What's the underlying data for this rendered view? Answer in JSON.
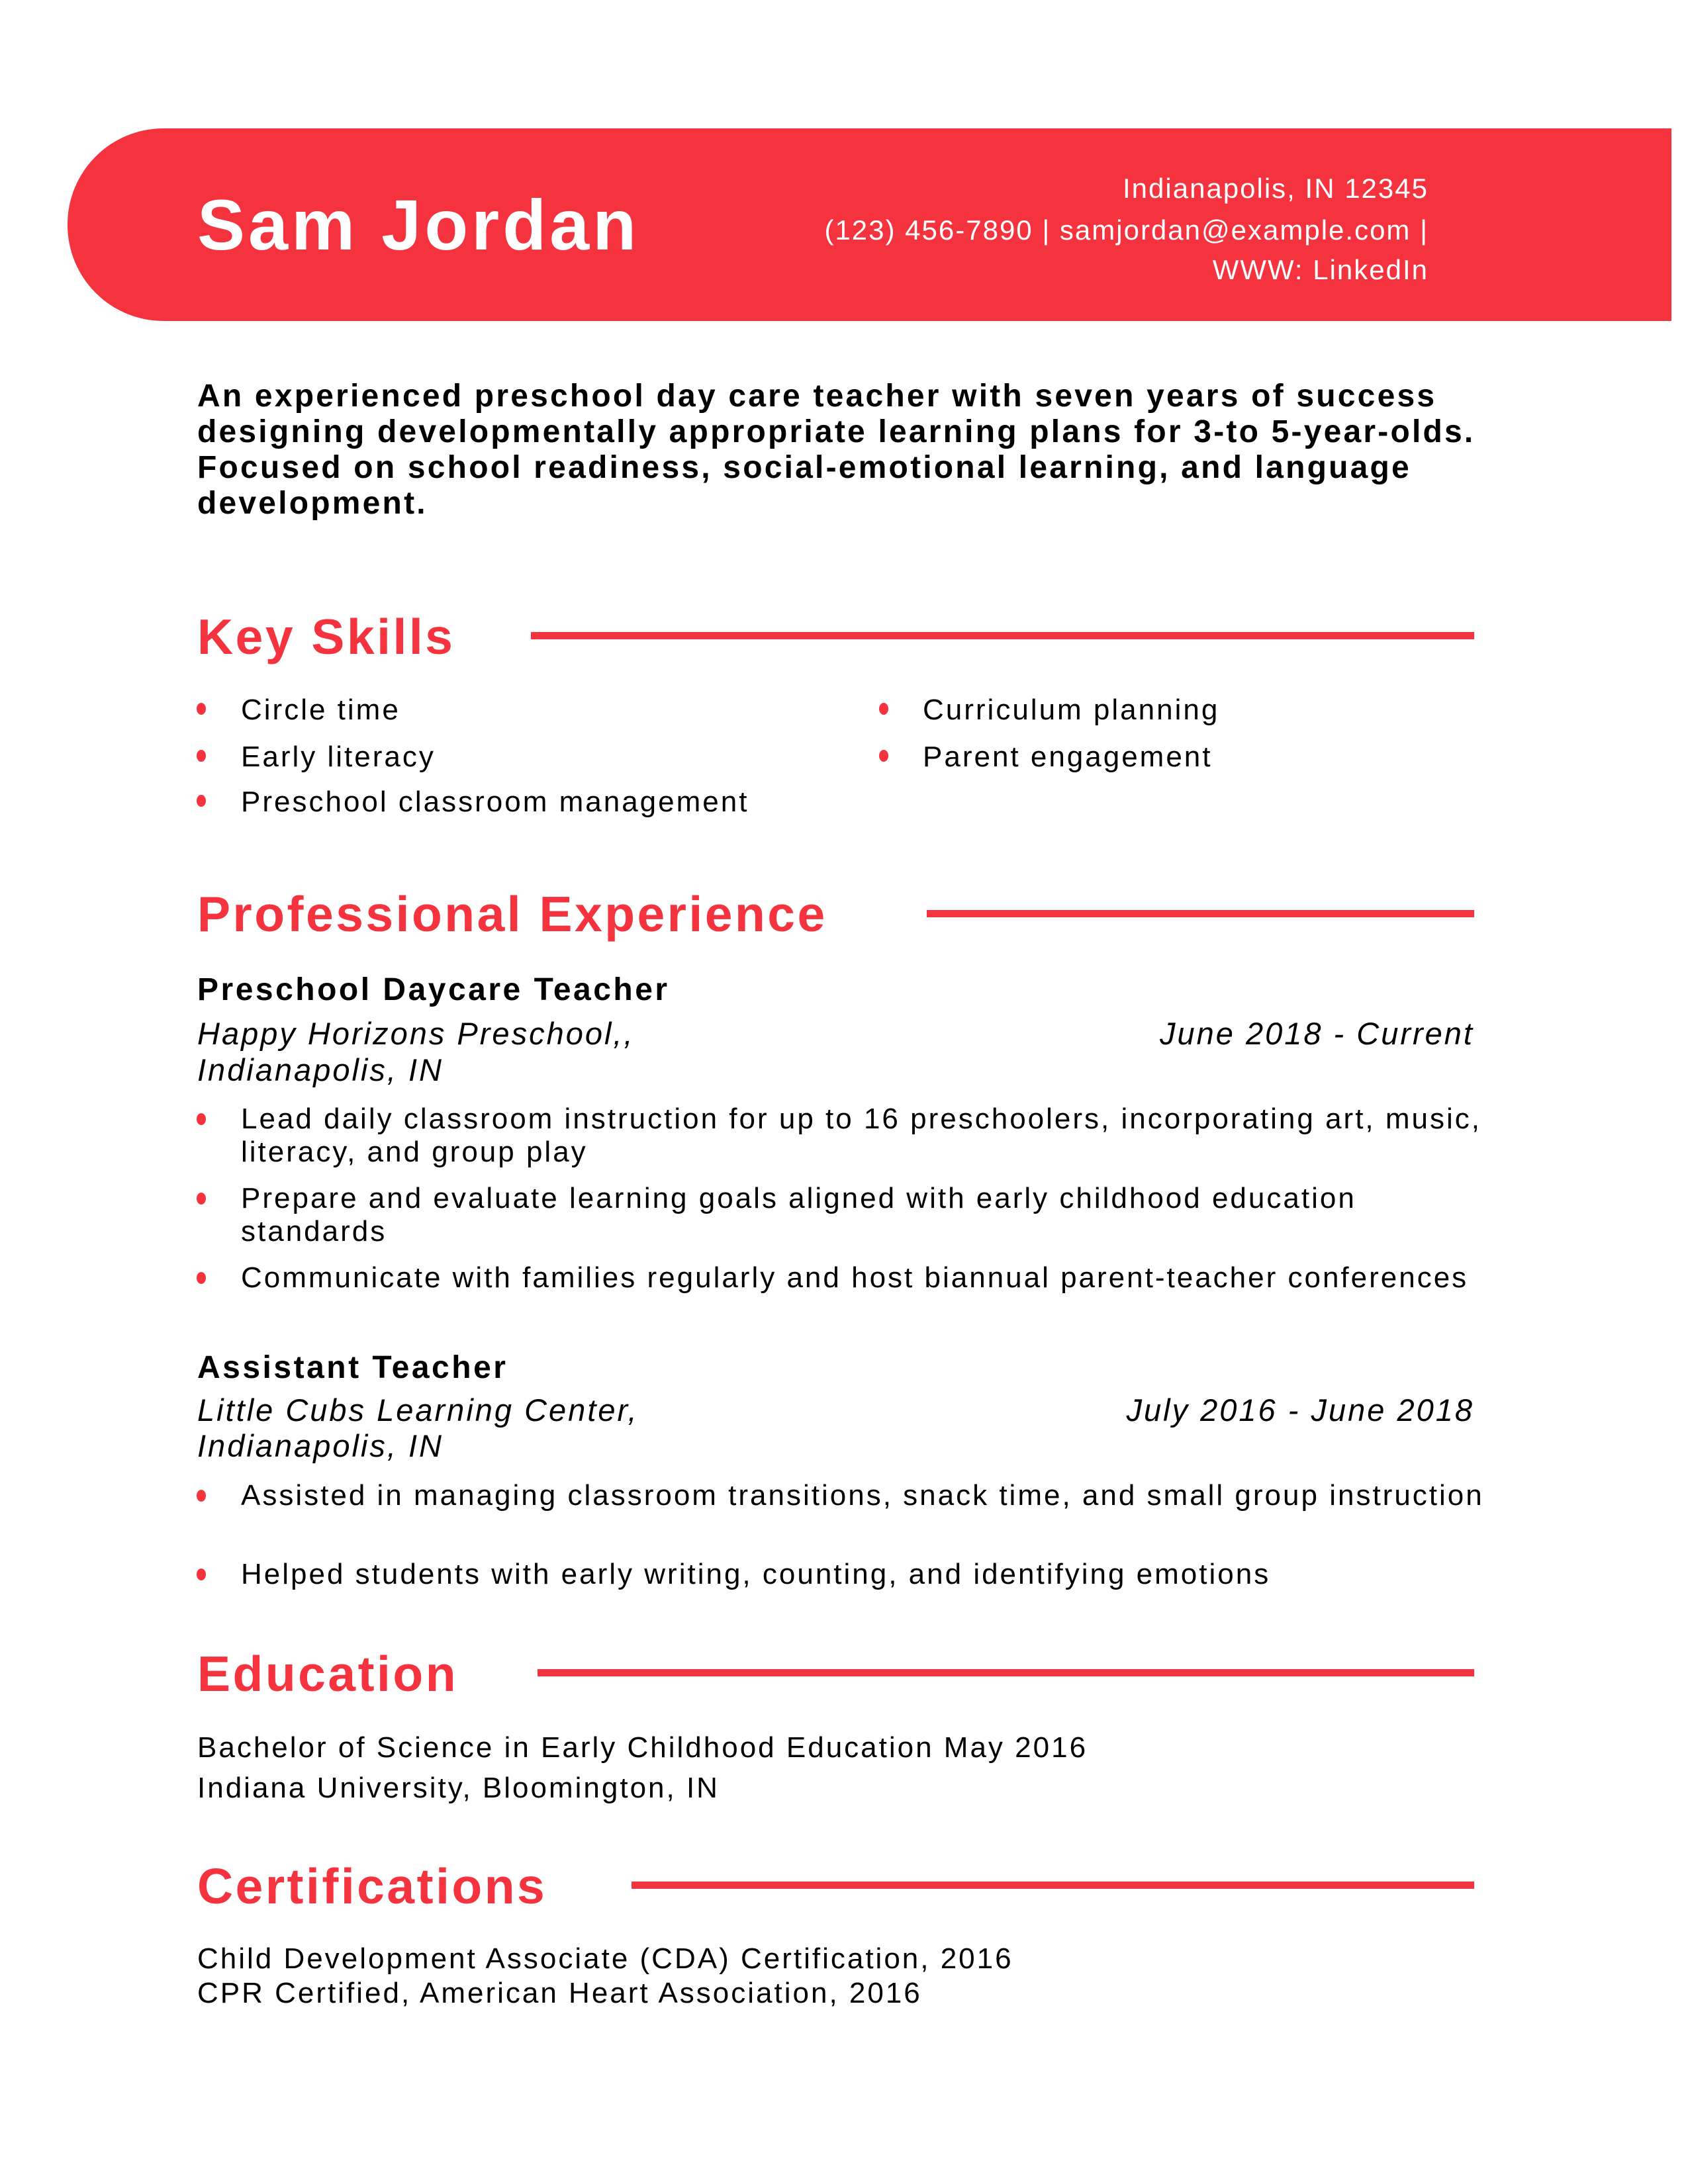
{
  "header": {
    "name": "Sam Jordan",
    "location": "Indianapolis, IN 12345",
    "contact_line": "(123) 456-7890 | samjordan@example.com |",
    "web": "WWW: LinkedIn"
  },
  "summary": "An experienced preschool day care teacher with seven years of success designing developmentally appropriate learning plans for 3-to 5-year-olds. Focused on school readiness, social-emotional learning, and language development.",
  "skills": {
    "title": "Key Skills",
    "items": [
      "Circle time",
      "Early literacy",
      "Preschool classroom management",
      "Curriculum planning",
      "Parent engagement"
    ]
  },
  "experience": {
    "title": "Professional Experience",
    "jobs": [
      {
        "title": "Preschool Daycare Teacher",
        "company": "Happy Horizons Preschool,,",
        "location": "Indianapolis, IN",
        "dates": "June 2018 - Current",
        "bullets": [
          "Lead daily classroom instruction for up to 16 preschoolers, incorporating art, music, literacy, and group play",
          "Prepare and evaluate learning goals aligned with early childhood education standards",
          "Communicate with families regularly and host biannual parent-teacher conferences"
        ]
      },
      {
        "title": "Assistant Teacher",
        "company": "Little Cubs Learning Center,",
        "location": "Indianapolis, IN",
        "dates": "July 2016 - June 2018",
        "bullets": [
          "Assisted in managing classroom transitions, snack time, and small group instruction",
          "Helped students with early writing, counting, and identifying emotions"
        ]
      }
    ]
  },
  "education": {
    "title": "Education",
    "degree": "Bachelor of Science in Early Childhood Education May 2016",
    "school": "Indiana University, Bloomington, IN"
  },
  "certifications": {
    "title": "Certifications",
    "items": [
      "Child Development Associate (CDA) Certification, 2016",
      "CPR Certified, American Heart Association, 2016"
    ]
  },
  "colors": {
    "accent": "#f4333f",
    "text": "#000000"
  }
}
